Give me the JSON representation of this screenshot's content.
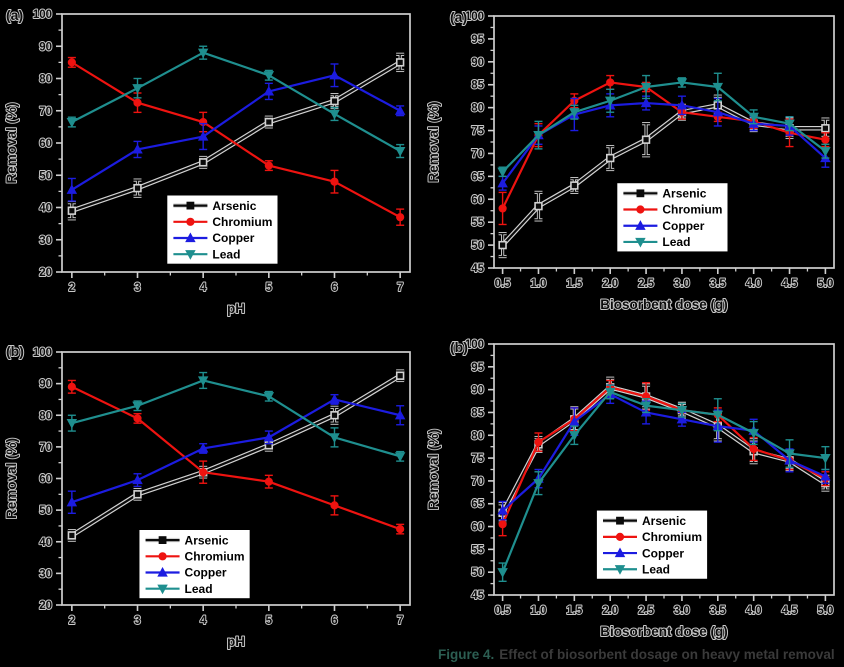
{
  "page": {
    "background": "#000000"
  },
  "caption": {
    "prefix": "Figure 4.",
    "text": "Effect of biosorbent dosage on heavy metal removal"
  },
  "palette": {
    "arsenic": "#0b0b0b",
    "chromium": "#ee1310",
    "copper": "#1c1ce0",
    "lead": "#1f8f8f",
    "halo": "#d2d2d2",
    "axis": "#cfcfcf",
    "legend_bg": "#ffffff",
    "legend_border": "#000000"
  },
  "chart_data": [
    {
      "id": "ph-a",
      "panel_label": "(a)",
      "type": "line",
      "title": "",
      "xlabel": "pH",
      "ylabel": "Removal (%)",
      "x": [
        2,
        3,
        4,
        5,
        6,
        7
      ],
      "xtick_labels": [
        "2",
        "3",
        "4",
        "5",
        "6",
        "7"
      ],
      "xlim": [
        1.85,
        7.15
      ],
      "ylim": [
        20,
        100
      ],
      "ytick_step": 10,
      "grid": false,
      "legend_position": "lower-center",
      "legend_pos": {
        "fx": 0.3,
        "fy": 0.7
      },
      "series": [
        {
          "name": "Arsenic",
          "marker": "square",
          "color_key": "arsenic",
          "halo": true,
          "values": [
            39,
            46,
            54,
            66.5,
            73,
            85
          ],
          "errors": [
            2.5,
            2.5,
            1.5,
            1.5,
            2,
            2.5
          ]
        },
        {
          "name": "Chromium",
          "marker": "circle",
          "color_key": "chromium",
          "halo": false,
          "values": [
            85,
            72.5,
            66.5,
            53,
            48,
            37
          ],
          "errors": [
            1.5,
            3,
            3,
            1.5,
            3.5,
            2.5
          ]
        },
        {
          "name": "Copper",
          "marker": "triangle-up",
          "color_key": "copper",
          "halo": false,
          "values": [
            45.5,
            58,
            62,
            76,
            81,
            70
          ],
          "errors": [
            3.5,
            2.5,
            4,
            2.5,
            3.5,
            1.5
          ]
        },
        {
          "name": "Lead",
          "marker": "triangle-down",
          "color_key": "lead",
          "halo": false,
          "values": [
            66.5,
            77,
            88,
            81,
            69,
            57.5
          ],
          "errors": [
            1.5,
            3,
            2,
            1.5,
            2,
            2
          ]
        }
      ]
    },
    {
      "id": "dose-a",
      "panel_label": "(a)",
      "type": "line",
      "title": "",
      "xlabel": "Biosorbent dose (g)",
      "ylabel": "Removal (%)",
      "x": [
        0.5,
        1.0,
        1.5,
        2.0,
        2.5,
        3.0,
        3.5,
        4.0,
        4.5,
        5.0
      ],
      "xtick_labels": [
        "0.5",
        "1.0",
        "1.5",
        "2.0",
        "2.5",
        "3.0",
        "3.5",
        "4.0",
        "4.5",
        "5.0"
      ],
      "xlim": [
        0.38,
        5.12
      ],
      "ylim": [
        45,
        100
      ],
      "ytick_step": 5,
      "grid": false,
      "legend_position": "lower-center",
      "legend_pos": {
        "fx": 0.36,
        "fy": 0.66
      },
      "series": [
        {
          "name": "Arsenic",
          "marker": "square",
          "color_key": "arsenic",
          "halo": true,
          "values": [
            50,
            58.5,
            63,
            69,
            73,
            79,
            80.5,
            76.5,
            75.5,
            75.5
          ],
          "errors": [
            2.5,
            3,
            1.5,
            2.5,
            3.5,
            1.5,
            2,
            1.5,
            2,
            2
          ]
        },
        {
          "name": "Chromium",
          "marker": "circle",
          "color_key": "chromium",
          "halo": false,
          "values": [
            58,
            74,
            81.5,
            85.5,
            84.5,
            79,
            78,
            77,
            74.5,
            73
          ],
          "errors": [
            3.5,
            2.5,
            1.5,
            1.5,
            1,
            1.5,
            1,
            1.5,
            3,
            1.5
          ]
        },
        {
          "name": "Copper",
          "marker": "triangle-up",
          "color_key": "copper",
          "halo": false,
          "values": [
            63.5,
            74,
            78.5,
            80.5,
            81,
            80.5,
            79,
            76.5,
            76,
            69
          ],
          "errors": [
            1.5,
            2,
            3.5,
            2.5,
            1.5,
            2,
            3,
            1.5,
            2,
            2
          ]
        },
        {
          "name": "Lead",
          "marker": "triangle-down",
          "color_key": "lead",
          "halo": false,
          "values": [
            66,
            74,
            79,
            81.5,
            84.5,
            85.5,
            84.5,
            78,
            76.5,
            70.5
          ],
          "errors": [
            1,
            3,
            1.5,
            2.5,
            2.5,
            1,
            3,
            1.5,
            1.5,
            1.5
          ]
        }
      ]
    },
    {
      "id": "ph-b",
      "panel_label": "(b)",
      "type": "line",
      "title": "",
      "xlabel": "pH",
      "ylabel": "Removal (%)",
      "x": [
        2,
        3,
        4,
        5,
        6,
        7
      ],
      "xtick_labels": [
        "2",
        "3",
        "4",
        "5",
        "6",
        "7"
      ],
      "xlim": [
        1.85,
        7.15
      ],
      "ylim": [
        20,
        100
      ],
      "ytick_step": 10,
      "grid": false,
      "legend_position": "lower-center",
      "legend_pos": {
        "fx": 0.22,
        "fy": 0.7
      },
      "series": [
        {
          "name": "Arsenic",
          "marker": "square",
          "color_key": "arsenic",
          "halo": true,
          "values": [
            42,
            55,
            62,
            70.5,
            80,
            92.5
          ],
          "errors": [
            1.5,
            1.5,
            1.5,
            1.5,
            2.5,
            1.5
          ]
        },
        {
          "name": "Chromium",
          "marker": "circle",
          "color_key": "chromium",
          "halo": false,
          "values": [
            89,
            79,
            62,
            59,
            51.5,
            44
          ],
          "errors": [
            2,
            1.5,
            3.5,
            2,
            3,
            1.5
          ]
        },
        {
          "name": "Copper",
          "marker": "triangle-up",
          "color_key": "copper",
          "halo": false,
          "values": [
            52.5,
            59.5,
            69.5,
            73,
            85,
            80
          ],
          "errors": [
            3.5,
            2,
            1.5,
            2,
            1.5,
            3
          ]
        },
        {
          "name": "Lead",
          "marker": "triangle-down",
          "color_key": "lead",
          "halo": false,
          "values": [
            77.5,
            83,
            91,
            86,
            73,
            67
          ],
          "errors": [
            2.5,
            1.5,
            2.5,
            1.5,
            3,
            1.5
          ]
        }
      ]
    },
    {
      "id": "dose-b",
      "panel_label": "(b)",
      "type": "line",
      "title": "",
      "xlabel": "Biosorbent dose (g)",
      "ylabel": "Removal (%)",
      "x": [
        0.5,
        1.0,
        1.5,
        2.0,
        2.5,
        3.0,
        3.5,
        4.0,
        4.5,
        5.0
      ],
      "xtick_labels": [
        "0.5",
        "1.0",
        "1.5",
        "2.0",
        "2.5",
        "3.0",
        "3.5",
        "4.0",
        "4.5",
        "5.0"
      ],
      "xlim": [
        0.38,
        5.12
      ],
      "ylim": [
        45,
        100
      ],
      "ytick_step": 5,
      "grid": false,
      "legend_position": "lower-center",
      "legend_pos": {
        "fx": 0.3,
        "fy": 0.66
      },
      "series": [
        {
          "name": "Arsenic",
          "marker": "square",
          "color_key": "arsenic",
          "halo": true,
          "values": [
            63,
            78,
            83.5,
            90.5,
            88.5,
            85.5,
            82,
            76.5,
            74.5,
            69.5
          ],
          "errors": [
            2,
            1.5,
            2.5,
            2,
            2.5,
            1.5,
            3,
            2.5,
            2,
            1.5
          ]
        },
        {
          "name": "Chromium",
          "marker": "circle",
          "color_key": "chromium",
          "halo": false,
          "values": [
            60.5,
            78.5,
            83.5,
            90.5,
            88.5,
            85.5,
            84.5,
            77,
            74.5,
            70.5
          ],
          "errors": [
            2.5,
            2,
            2.5,
            1.5,
            3,
            1.5,
            1.5,
            2.5,
            2,
            1.5
          ]
        },
        {
          "name": "Copper",
          "marker": "triangle-up",
          "color_key": "copper",
          "halo": false,
          "values": [
            63.5,
            70.5,
            83,
            89,
            85,
            83.5,
            82,
            81,
            74.5,
            71
          ],
          "errors": [
            2,
            2,
            3,
            2,
            2.5,
            1.5,
            3.5,
            2.5,
            2.5,
            1.5
          ]
        },
        {
          "name": "Lead",
          "marker": "triangle-down",
          "color_key": "lead",
          "halo": false,
          "values": [
            50,
            69.5,
            80,
            89.5,
            86.5,
            85.5,
            84.5,
            80.5,
            76,
            75
          ],
          "errors": [
            2,
            2.5,
            2,
            1.5,
            1.5,
            1.5,
            3.5,
            2.5,
            3,
            2.5
          ]
        }
      ]
    }
  ]
}
